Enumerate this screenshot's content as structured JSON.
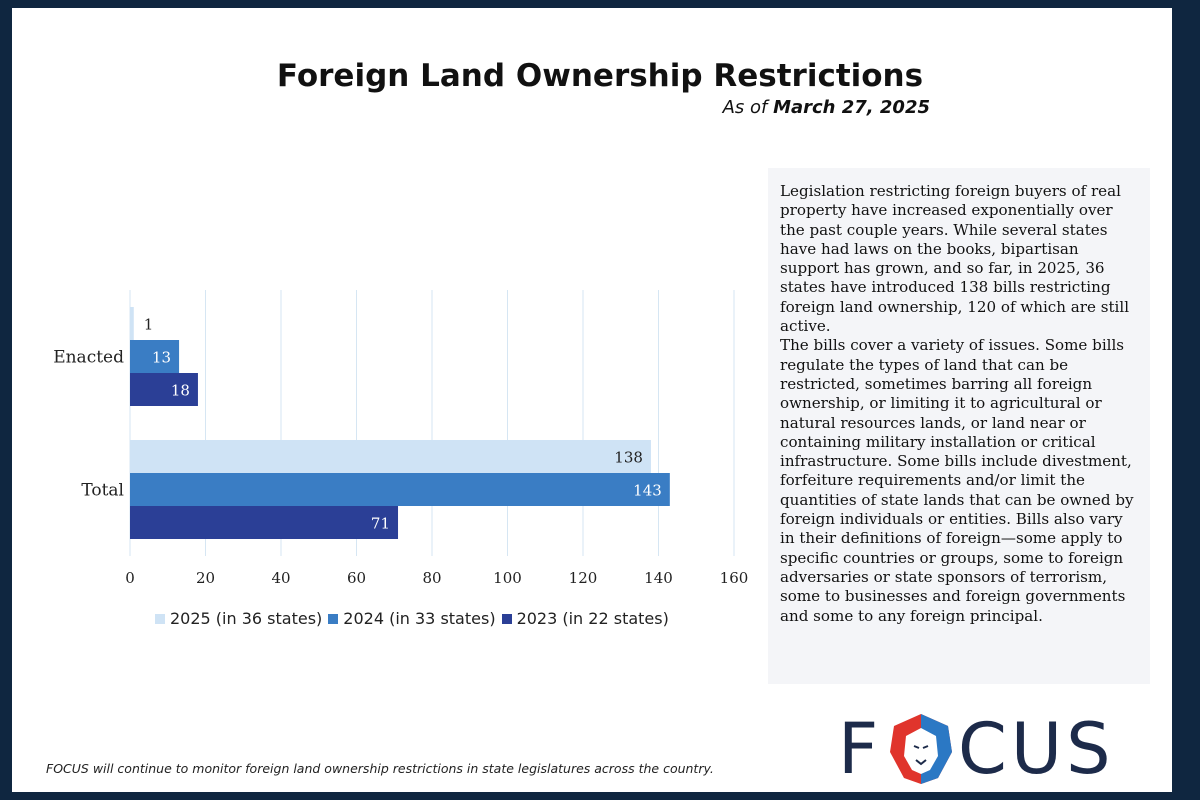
{
  "header": {
    "title": "Foreign Land Ownership Restrictions",
    "subtitle_prefix": "As of",
    "subtitle_date": "March 27, 2025"
  },
  "chart_data": {
    "type": "bar",
    "orientation": "horizontal",
    "categories": [
      "Enacted",
      "Total"
    ],
    "series": [
      {
        "name": "2025 (in 36 states)",
        "values": [
          1,
          138
        ],
        "color": "#cfe3f5",
        "label_color": "#222222"
      },
      {
        "name": "2024 (in 33 states)",
        "values": [
          13,
          143
        ],
        "color": "#3a7dc4",
        "label_color": "#ffffff"
      },
      {
        "name": "2023 (in 22 states)",
        "values": [
          18,
          71
        ],
        "color": "#2b3f96",
        "label_color": "#ffffff"
      }
    ],
    "xlim": [
      0,
      160
    ],
    "xticks": [
      0,
      20,
      40,
      60,
      80,
      100,
      120,
      140,
      160
    ],
    "grid": true,
    "legend": "bottom"
  },
  "description": {
    "paragraphs": [
      "Legislation restricting foreign buyers of real property have increased exponentially over the past couple years. While several states have had laws on the books, bipartisan support has grown, and so far, in 2025, 36 states have introduced 138 bills restricting foreign land ownership, 120 of which are still active.",
      "The bills cover a variety of issues. Some bills regulate the types of land that can be restricted, sometimes barring all foreign ownership, or limiting it to agricultural or natural resources lands, or land near or containing military installation or critical infrastructure. Some bills include divestment, forfeiture requirements and/or limit the quantities of state lands that can be owned by foreign individuals or entities. Bills also vary in their definitions of foreign—some apply to specific countries or groups, some to foreign adversaries or state sponsors of terrorism, some to businesses and foreign governments and some to any foreign principal."
    ]
  },
  "footer": {
    "note": "FOCUS will continue to monitor foreign land ownership restrictions in state legislatures across the country."
  },
  "logo": {
    "text_left": "F",
    "text_right": "CUS",
    "icon": "lion-head-icon",
    "colors": [
      "#e0342c",
      "#2b78c4",
      "#1d2b4a"
    ]
  }
}
